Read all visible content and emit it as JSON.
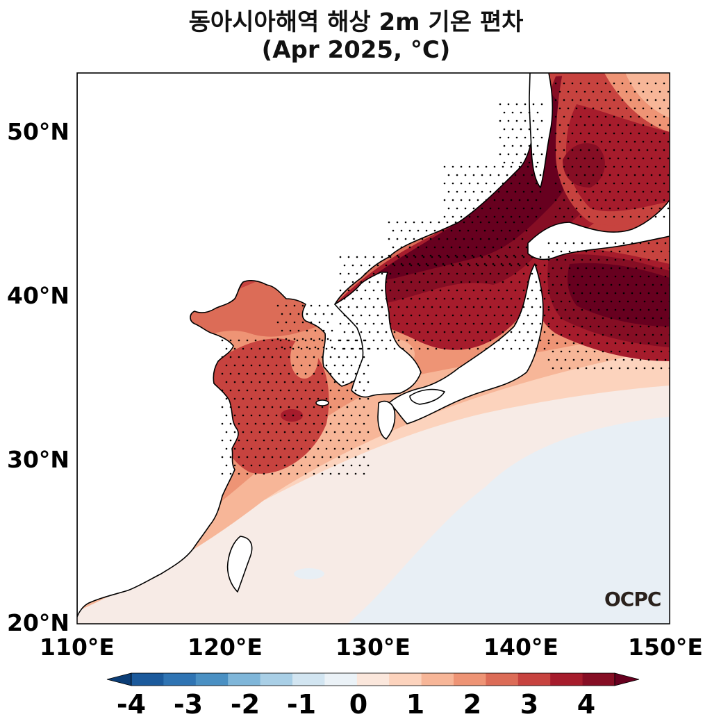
{
  "title": "동아시아해역 해상 2m 기온 편차",
  "subtitle": "(Apr 2025, °C)",
  "logo_text": "OCPC",
  "y_ticks": [
    "50°N",
    "40°N",
    "30°N",
    "20°N"
  ],
  "x_ticks": [
    "110°E",
    "120°E",
    "130°E",
    "140°E",
    "150°E"
  ],
  "colorbar": {
    "labels": [
      "-4",
      "-3",
      "-2",
      "-1",
      "0",
      "1",
      "2",
      "3",
      "4"
    ],
    "colors": [
      "#0b3d76",
      "#1b5a9c",
      "#2f74b3",
      "#4a90c3",
      "#7fb6d9",
      "#a9cfe6",
      "#d2e5f1",
      "#ebf2f7",
      "#fbe7dc",
      "#fcd3bd",
      "#f7b698",
      "#ee9475",
      "#dc6c57",
      "#c7433f",
      "#a61c2c",
      "#860e24",
      "#67001f"
    ]
  },
  "colors": {
    "land": "#ffffff",
    "coast": "#000000",
    "anomaly_strong": "#67001f",
    "anomaly_neutral": "#f7ebe6",
    "anomaly_negative": "#e8eff5"
  },
  "map": {
    "lon_range": [
      110,
      150
    ],
    "lat_range": [
      20,
      53.5
    ],
    "stippling": "significance dots"
  }
}
